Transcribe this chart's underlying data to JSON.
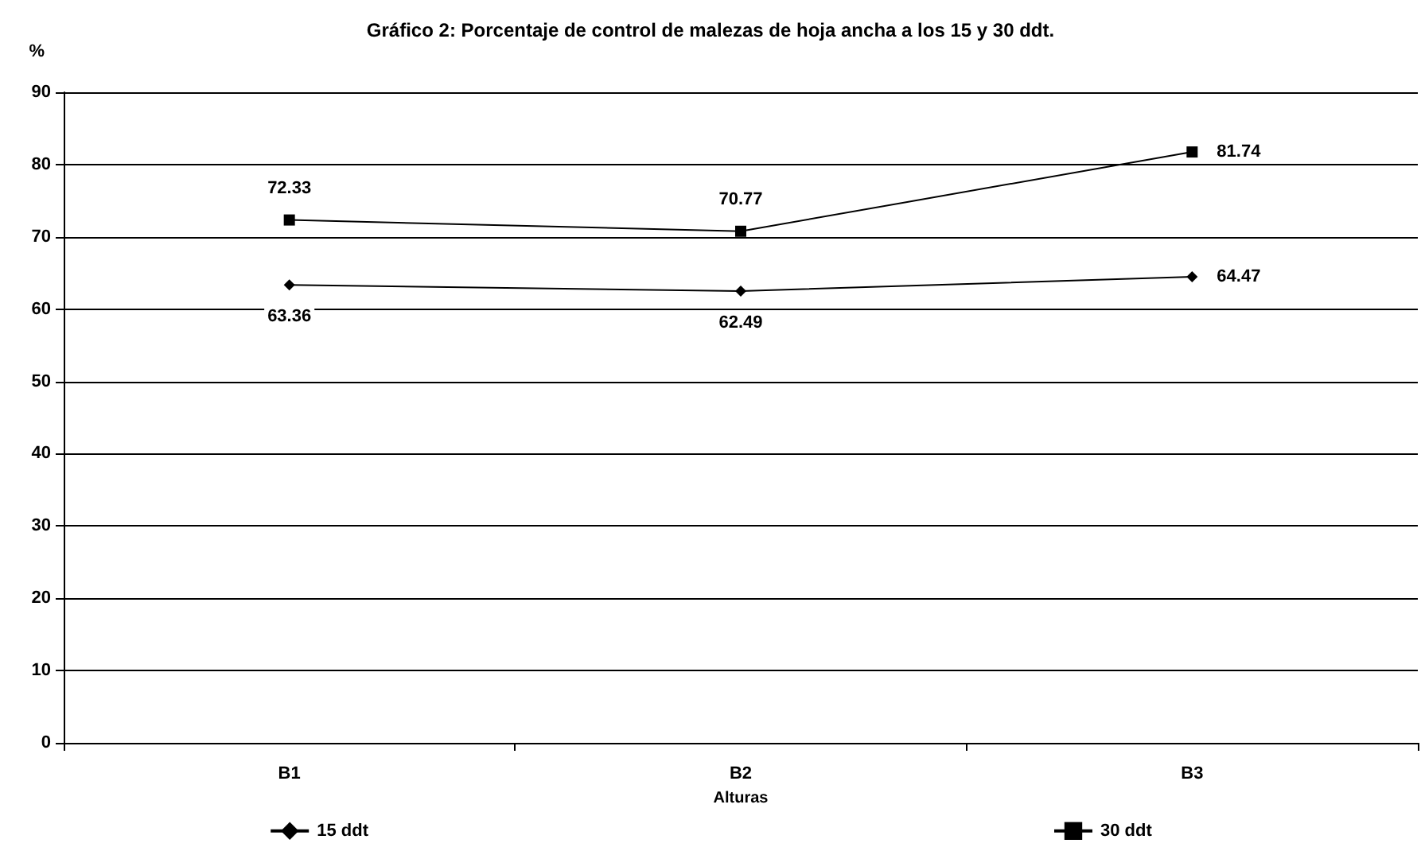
{
  "chart_data": {
    "type": "line",
    "title": "Gráfico 2: Porcentaje de control de malezas de hoja ancha a los 15 y 30 ddt.",
    "ylabel": "%",
    "xlabel": "Alturas",
    "categories": [
      "B1",
      "B2",
      "B3"
    ],
    "series": [
      {
        "name": "15 ddt",
        "color": "#000000",
        "marker": "diamond",
        "values": [
          63.36,
          62.49,
          64.47
        ]
      },
      {
        "name": "30 ddt",
        "color": "#000000",
        "marker": "square",
        "values": [
          72.33,
          70.77,
          81.74
        ]
      }
    ],
    "ylim": [
      0,
      90
    ],
    "yticks": [
      0,
      10,
      20,
      30,
      40,
      50,
      60,
      70,
      80,
      90
    ],
    "grid": "y",
    "legend": "bottom",
    "data_labels": true,
    "line_style": "solid"
  }
}
